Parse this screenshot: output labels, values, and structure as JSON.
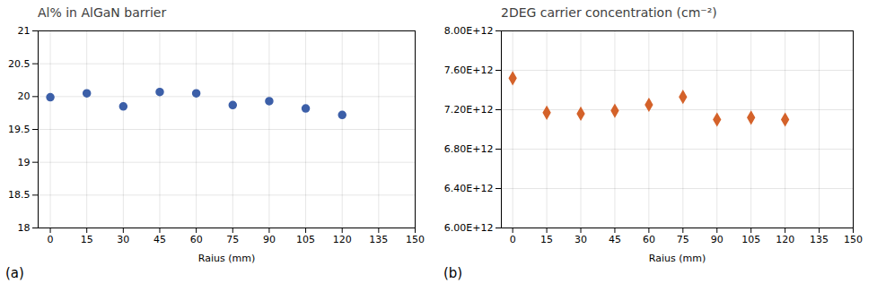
{
  "chart_data": [
    {
      "type": "scatter",
      "title": "Al% in AlGaN barrier",
      "x_label": "Raius (mm)",
      "x": [
        0,
        15,
        30,
        45,
        60,
        75,
        90,
        105,
        120
      ],
      "values": [
        19.99,
        20.05,
        19.85,
        20.07,
        20.05,
        19.87,
        19.93,
        19.82,
        19.72
      ],
      "color": "#3c5fa8",
      "marker": "circle",
      "xlim": [
        -5,
        150
      ],
      "xticks": [
        0,
        15,
        30,
        45,
        60,
        75,
        90,
        105,
        120,
        135,
        150
      ],
      "ylim": [
        18,
        21
      ],
      "yticks": [
        18,
        18.5,
        19,
        19.5,
        20,
        20.5,
        21
      ],
      "grid": true,
      "annotations": [
        "(a)"
      ]
    },
    {
      "type": "scatter",
      "title": "2DEG carrier concentration (cm⁻²)",
      "x_label": "Raius (mm)",
      "x": [
        0,
        15,
        30,
        45,
        60,
        75,
        90,
        105,
        120
      ],
      "values": [
        7520000000000.0,
        7170000000000.0,
        7160000000000.0,
        7190000000000.0,
        7250000000000.0,
        7330000000000.0,
        7100000000000.0,
        7120000000000.0,
        7100000000000.0
      ],
      "color": "#d4622a",
      "marker": "diamond",
      "xlim": [
        -5,
        150
      ],
      "xticks": [
        0,
        15,
        30,
        45,
        60,
        75,
        90,
        105,
        120,
        135,
        150
      ],
      "ylim": [
        6000000000000.0,
        8000000000000.0
      ],
      "yticks": [
        {
          "value": 6000000000000.0,
          "label": "6.00E+12"
        },
        {
          "value": 6400000000000.0,
          "label": "6.40E+12"
        },
        {
          "value": 6800000000000.0,
          "label": "6.80E+12"
        },
        {
          "value": 7200000000000.0,
          "label": "7.20E+12"
        },
        {
          "value": 7600000000000.0,
          "label": "7.60E+12"
        },
        {
          "value": 8000000000000.0,
          "label": "8.00E+12"
        }
      ],
      "grid": true,
      "annotations": [
        "(b)"
      ]
    }
  ]
}
